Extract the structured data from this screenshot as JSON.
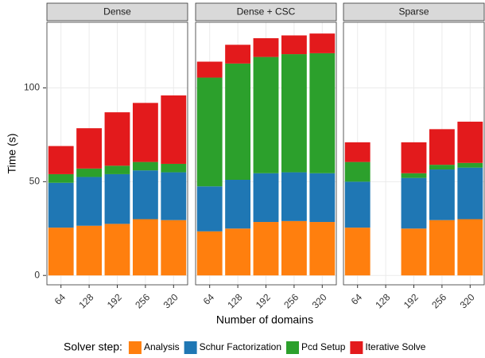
{
  "chart_data": {
    "type": "bar",
    "stacked": true,
    "x_label": "Number of domains",
    "y_label": "Time (s)",
    "legend_title": "Solver step:",
    "categories": [
      "64",
      "128",
      "192",
      "256",
      "320"
    ],
    "ylim": [
      -5,
      135
    ],
    "yticks": [
      0,
      50,
      100
    ],
    "grid": true,
    "series": [
      {
        "name": "Analysis",
        "color": "#ff7f0e"
      },
      {
        "name": "Schur Factorization",
        "color": "#1f77b4"
      },
      {
        "name": "Pcd Setup",
        "color": "#2ca02c"
      },
      {
        "name": "Iterative Solve",
        "color": "#e31a1c"
      }
    ],
    "panels": [
      {
        "title": "Dense",
        "values": [
          [
            25.5,
            26.5,
            27.5,
            30,
            29.5
          ],
          [
            23.9,
            26,
            26.5,
            26,
            25.5
          ],
          [
            4.6,
            4.5,
            4.5,
            4.5,
            4.5
          ],
          [
            15,
            21.5,
            28.5,
            31.5,
            36.5
          ]
        ]
      },
      {
        "title": "Dense + CSC",
        "values": [
          [
            23.5,
            25,
            28.5,
            29,
            28.5
          ],
          [
            24,
            26,
            26,
            26,
            26
          ],
          [
            58,
            62,
            62,
            63,
            64
          ],
          [
            8.5,
            10,
            10,
            10,
            10.5
          ]
        ]
      },
      {
        "title": "Sparse",
        "values": [
          [
            25.5,
            null,
            25,
            29.5,
            30
          ],
          [
            24.5,
            null,
            27,
            27,
            27.5
          ],
          [
            10.5,
            null,
            2.5,
            2.5,
            2.5
          ],
          [
            10.5,
            null,
            16.5,
            19,
            22
          ]
        ]
      }
    ]
  }
}
